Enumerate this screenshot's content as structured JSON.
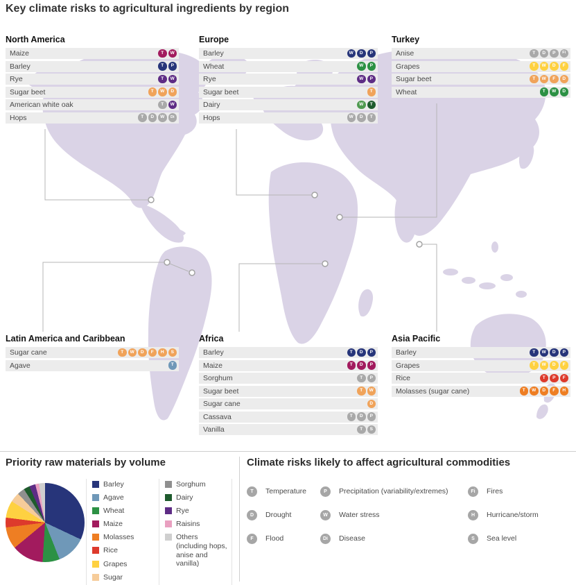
{
  "title": "Key climate risks to agricultural ingredients by region",
  "regions": [
    {
      "name": "North America",
      "rows": [
        {
          "label": "Maize",
          "color": "#a21b5e",
          "risks": [
            "T",
            "W"
          ]
        },
        {
          "label": "Barley",
          "color": "#27357a",
          "risks": [
            "T",
            "P"
          ]
        },
        {
          "label": "Rye",
          "color": "#5e2c85",
          "risks": [
            "T",
            "W"
          ]
        },
        {
          "label": "Sugar beet",
          "color": "#f0a35a",
          "risks": [
            "T",
            "W",
            "D"
          ]
        },
        {
          "label": "American white oak",
          "color": "#a9a9a9",
          "risks": [
            "T",
            "W"
          ],
          "risk_colors": [
            "#a9a9a9",
            "#5e2c85"
          ]
        },
        {
          "label": "Hops",
          "color": "#a9a9a9",
          "risks": [
            "T",
            "D",
            "W",
            "Di"
          ]
        }
      ]
    },
    {
      "name": "Europe",
      "rows": [
        {
          "label": "Barley",
          "color": "#27357a",
          "risks": [
            "W",
            "D",
            "P"
          ]
        },
        {
          "label": "Wheat",
          "color": "#2c9144",
          "risks": [
            "W",
            "P"
          ]
        },
        {
          "label": "Rye",
          "color": "#5e2c85",
          "risks": [
            "W",
            "P"
          ]
        },
        {
          "label": "Sugar beet",
          "color": "#f0a35a",
          "risks": [
            "T"
          ]
        },
        {
          "label": "Dairy",
          "color": "#1e5b2d",
          "risks": [
            "W",
            "T"
          ],
          "risk_colors": [
            "#4f9a4f",
            "#1e5b2d"
          ]
        },
        {
          "label": "Hops",
          "color": "#a9a9a9",
          "risks": [
            "W",
            "D",
            "T"
          ]
        }
      ]
    },
    {
      "name": "Turkey",
      "rows": [
        {
          "label": "Anise",
          "color": "#a9a9a9",
          "risks": [
            "T",
            "D",
            "P",
            "Fi"
          ]
        },
        {
          "label": "Grapes",
          "color": "#fed141",
          "risks": [
            "T",
            "W",
            "D",
            "F"
          ]
        },
        {
          "label": "Sugar beet",
          "color": "#f0a35a",
          "risks": [
            "T",
            "W",
            "F",
            "D"
          ]
        },
        {
          "label": "Wheat",
          "color": "#2c9144",
          "risks": [
            "T",
            "W",
            "D"
          ]
        }
      ]
    },
    {
      "name": "Latin America and Caribbean",
      "rows": [
        {
          "label": "Sugar cane",
          "color": "#f0a35a",
          "risks": [
            "T",
            "W",
            "D",
            "F",
            "H",
            "S"
          ]
        },
        {
          "label": "Agave",
          "color": "#6f98b8",
          "risks": [
            "T"
          ]
        }
      ]
    },
    {
      "name": "Africa",
      "rows": [
        {
          "label": "Barley",
          "color": "#27357a",
          "risks": [
            "T",
            "D",
            "P"
          ]
        },
        {
          "label": "Maize",
          "color": "#a21b5e",
          "risks": [
            "T",
            "D",
            "P"
          ]
        },
        {
          "label": "Sorghum",
          "color": "#a9a9a9",
          "risks": [
            "T",
            "P"
          ]
        },
        {
          "label": "Sugar beet",
          "color": "#f0a35a",
          "risks": [
            "T",
            "W"
          ]
        },
        {
          "label": "Sugar cane",
          "color": "#f0a35a",
          "risks": [
            "D"
          ]
        },
        {
          "label": "Cassava",
          "color": "#a9a9a9",
          "risks": [
            "T",
            "D",
            "P"
          ]
        },
        {
          "label": "Vanilla",
          "color": "#a9a9a9",
          "risks": [
            "T",
            "S"
          ]
        }
      ]
    },
    {
      "name": "Asia Pacific",
      "rows": [
        {
          "label": "Barley",
          "color": "#27357a",
          "risks": [
            "T",
            "W",
            "D",
            "P"
          ]
        },
        {
          "label": "Grapes",
          "color": "#fed141",
          "risks": [
            "T",
            "W",
            "D",
            "F"
          ]
        },
        {
          "label": "Rice",
          "color": "#dd3a2c",
          "risks": [
            "T",
            "P",
            "F"
          ]
        },
        {
          "label": "Molasses (sugar cane)",
          "color": "#ee7e23",
          "risks": [
            "T",
            "W",
            "D",
            "F",
            "H"
          ]
        }
      ]
    }
  ],
  "risk_legend": {
    "title": "Climate risks likely to affect agricultural commodities",
    "badge_color": "#a6a6a6",
    "columns": [
      [
        {
          "code": "T",
          "label": "Temperature"
        },
        {
          "code": "D",
          "label": "Drought"
        },
        {
          "code": "F",
          "label": "Flood"
        }
      ],
      [
        {
          "code": "P",
          "label": "Precipitation (variability/extremes)"
        },
        {
          "code": "W",
          "label": "Water stress"
        },
        {
          "code": "Di",
          "label": "Disease"
        }
      ],
      [
        {
          "code": "Fi",
          "label": "Fires"
        },
        {
          "code": "H",
          "label": "Hurricane/storm"
        },
        {
          "code": "S",
          "label": "Sea level"
        }
      ]
    ]
  },
  "chart_data": {
    "type": "pie",
    "title": "Priority raw materials by volume",
    "slices": [
      {
        "label": "Barley",
        "value": 32,
        "color": "#27357a"
      },
      {
        "label": "Agave",
        "value": 12,
        "color": "#6f98b8"
      },
      {
        "label": "Wheat",
        "value": 7,
        "color": "#2c9144"
      },
      {
        "label": "Maize",
        "value": 13,
        "color": "#a21b5e"
      },
      {
        "label": "Molasses",
        "value": 9,
        "color": "#ee7e23"
      },
      {
        "label": "Rice",
        "value": 4,
        "color": "#dd3a2c"
      },
      {
        "label": "Grapes",
        "value": 7,
        "color": "#fed141"
      },
      {
        "label": "Sugar",
        "value": 4,
        "color": "#f6cc9a"
      },
      {
        "label": "Sorghum",
        "value": 3,
        "color": "#8f8f8f"
      },
      {
        "label": "Dairy",
        "value": 2.5,
        "color": "#1e5b2d"
      },
      {
        "label": "Rye",
        "value": 2.5,
        "color": "#5e2c85"
      },
      {
        "label": "Raisins",
        "value": 1.5,
        "color": "#e9a0c0"
      },
      {
        "label": "Others",
        "value": 2.5,
        "color": "#cfcfcf"
      }
    ],
    "legend_columns": [
      [
        {
          "label": "Barley",
          "color": "#27357a"
        },
        {
          "label": "Agave",
          "color": "#6f98b8"
        },
        {
          "label": "Wheat",
          "color": "#2c9144"
        },
        {
          "label": "Maize",
          "color": "#a21b5e"
        },
        {
          "label": "Molasses",
          "color": "#ee7e23"
        },
        {
          "label": "Rice",
          "color": "#dd3a2c"
        },
        {
          "label": "Grapes",
          "color": "#fed141"
        },
        {
          "label": "Sugar",
          "color": "#f6cc9a"
        }
      ],
      [
        {
          "label": "Sorghum",
          "color": "#8f8f8f"
        },
        {
          "label": "Dairy",
          "color": "#1e5b2d"
        },
        {
          "label": "Rye",
          "color": "#5e2c85"
        },
        {
          "label": "Raisins",
          "color": "#e9a0c0"
        },
        {
          "label": "Others (including hops, anise and vanilla)",
          "color": "#cfcfcf"
        }
      ]
    ]
  }
}
